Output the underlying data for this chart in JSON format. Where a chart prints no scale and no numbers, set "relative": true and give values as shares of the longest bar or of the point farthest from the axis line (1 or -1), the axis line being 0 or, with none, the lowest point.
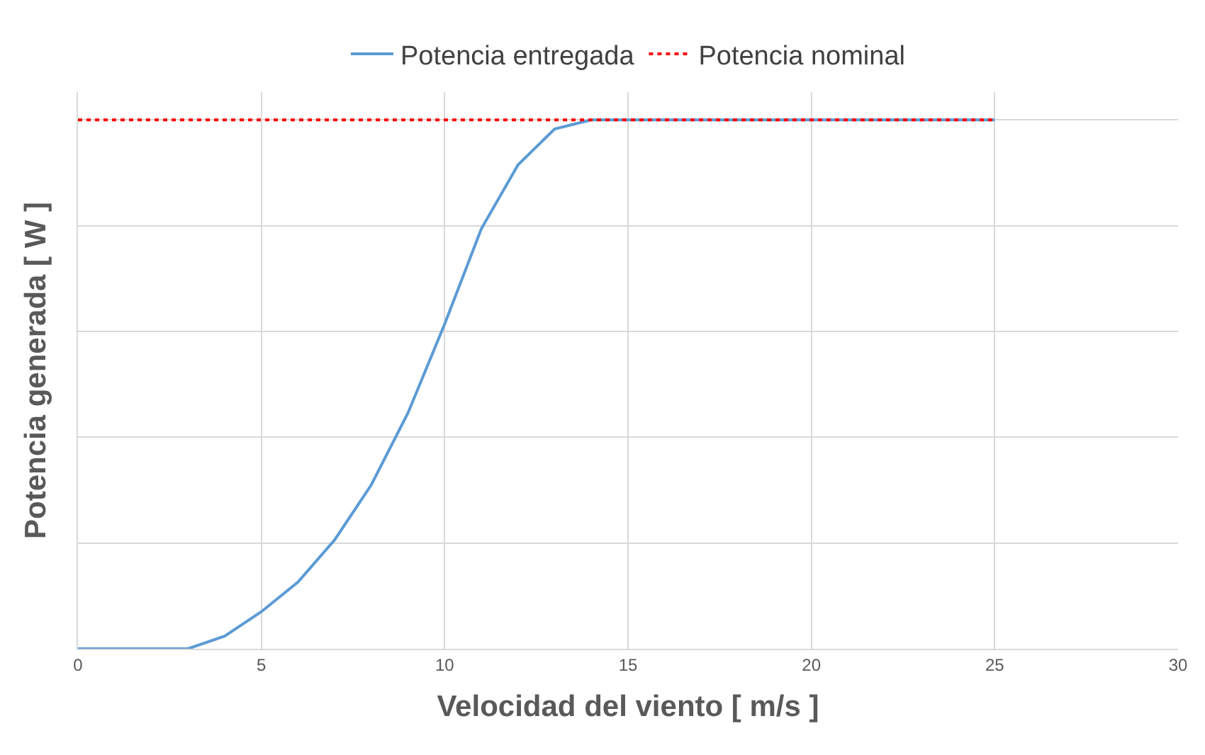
{
  "chart_data": {
    "type": "line",
    "relative": true,
    "xlabel": "Velocidad del viento [ m/s ]",
    "ylabel": "Potencia generada [ W ]",
    "xlim": [
      0,
      30
    ],
    "xticks": [
      0,
      5,
      10,
      15,
      20,
      25,
      30
    ],
    "grid": true,
    "legend": "top",
    "series": [
      {
        "name": "Potencia entregada",
        "color": "#5b9bd5",
        "line_style": "solid",
        "x": [
          0,
          1,
          2,
          3,
          4,
          5,
          6,
          7,
          8,
          9,
          10,
          11,
          12,
          13,
          14,
          15,
          16,
          17,
          18,
          19,
          20,
          21,
          22,
          23,
          24,
          25
        ],
        "values": [
          0,
          0,
          0,
          0,
          0.024,
          0.07,
          0.126,
          0.206,
          0.31,
          0.446,
          0.614,
          0.794,
          0.915,
          0.983,
          1,
          1,
          1,
          1,
          1,
          1,
          1,
          1,
          1,
          1,
          1,
          1
        ]
      },
      {
        "name": "Potencia nominal",
        "color": "#ff0000",
        "line_style": "dotted",
        "x": [
          0,
          25
        ],
        "values": [
          1,
          1
        ]
      }
    ]
  }
}
